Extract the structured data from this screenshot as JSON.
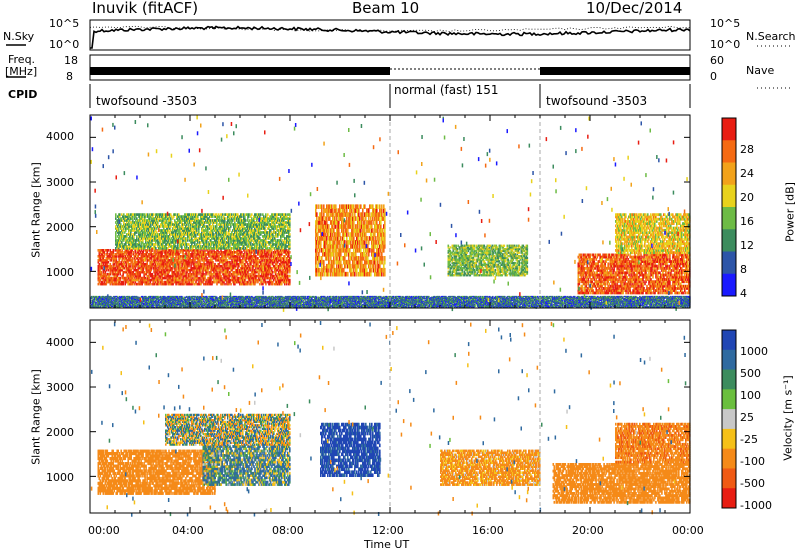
{
  "header": {
    "station": "Inuvik (fitACF)",
    "beam": "Beam 10",
    "date": "10/Dec/2014"
  },
  "panels": {
    "noise": {
      "left_label": "N.Sky",
      "right_label": "N.Search",
      "ticks_left": [
        "10^5",
        "10^0"
      ],
      "ticks_right": [
        "10^5",
        "10^0"
      ]
    },
    "freq": {
      "left_label_1": "Freq.",
      "left_label_2": "[MHz]",
      "ticks_left": [
        "18",
        "8"
      ],
      "right_label": "Nave",
      "ticks_right": [
        "60",
        "0"
      ]
    },
    "cpid": {
      "label": "CPID",
      "segments": [
        {
          "name": "twofsound -3503",
          "start_hour": 0,
          "end_hour": 12
        },
        {
          "name": "normal (fast) 151",
          "start_hour": 12,
          "end_hour": 18
        },
        {
          "name": "twofsound -3503",
          "start_hour": 18,
          "end_hour": 24
        }
      ]
    }
  },
  "axes": {
    "x_label": "Time UT",
    "x_ticks": [
      "00:00",
      "04:00",
      "08:00",
      "12:00",
      "16:00",
      "20:00",
      "00:00"
    ],
    "y_label": "Slant Range [km]",
    "y_ticks": [
      "1000",
      "2000",
      "3000",
      "4000"
    ]
  },
  "colorbars": {
    "power": {
      "label": "Power [dB]",
      "ticks": [
        "4",
        "8",
        "12",
        "16",
        "20",
        "24",
        "28"
      ],
      "colors": [
        "#1a1aff",
        "#2d55a8",
        "#3c8c5e",
        "#6dbb45",
        "#e8d21c",
        "#f2a21a",
        "#f56a12",
        "#e81d12"
      ]
    },
    "velocity": {
      "label": "Velocity [m s⁻¹]",
      "ticks": [
        "1000",
        "500",
        "100",
        "25",
        "-25",
        "-100",
        "-500",
        "-1000"
      ],
      "colors": [
        "#2046b4",
        "#2f6aa0",
        "#3c8c5e",
        "#6bbf3e",
        "#c8c8c8",
        "#f5c018",
        "#f58a18",
        "#f05a14",
        "#e81d12"
      ]
    }
  },
  "chart_data": {
    "type": "heatmap",
    "x_range_hours": [
      0,
      24
    ],
    "y_range_km": [
      180,
      4500
    ],
    "power_range_db": [
      0,
      30
    ],
    "velocity_range_ms": [
      -1000,
      1000
    ],
    "series": [
      {
        "name": "Power [dB]",
        "regions": [
          {
            "t0": 0.3,
            "t1": 8.0,
            "r0": 700,
            "r1": 1500,
            "value": 26
          },
          {
            "t0": 1.0,
            "t1": 8.0,
            "r0": 1500,
            "r1": 2300,
            "value": 13
          },
          {
            "t0": 9.0,
            "t1": 11.8,
            "r0": 900,
            "r1": 2500,
            "value": 22
          },
          {
            "t0": 14.3,
            "t1": 17.5,
            "r0": 900,
            "r1": 1600,
            "value": 13
          },
          {
            "t0": 19.5,
            "t1": 24.0,
            "r0": 500,
            "r1": 1400,
            "value": 25
          },
          {
            "t0": 21.0,
            "t1": 24.0,
            "r0": 1400,
            "r1": 2300,
            "value": 18
          },
          {
            "t0": 0.0,
            "t1": 24.0,
            "r0": 200,
            "r1": 450,
            "value": 7
          }
        ]
      },
      {
        "name": "Velocity [m s⁻¹]",
        "regions": [
          {
            "t0": 0.3,
            "t1": 5.0,
            "r0": 600,
            "r1": 1600,
            "value": -300
          },
          {
            "t0": 4.5,
            "t1": 8.0,
            "r0": 800,
            "r1": 1700,
            "value": 100
          },
          {
            "t0": 3.0,
            "t1": 8.0,
            "r0": 1700,
            "r1": 2400,
            "value": 0
          },
          {
            "t0": 9.2,
            "t1": 11.6,
            "r0": 1000,
            "r1": 2200,
            "value": 600
          },
          {
            "t0": 14.0,
            "t1": 18.0,
            "r0": 800,
            "r1": 1600,
            "value": -200
          },
          {
            "t0": 18.5,
            "t1": 24.0,
            "r0": 400,
            "r1": 1300,
            "value": -300
          },
          {
            "t0": 21.0,
            "t1": 24.0,
            "r0": 1300,
            "r1": 2200,
            "value": -400
          }
        ]
      }
    ]
  }
}
